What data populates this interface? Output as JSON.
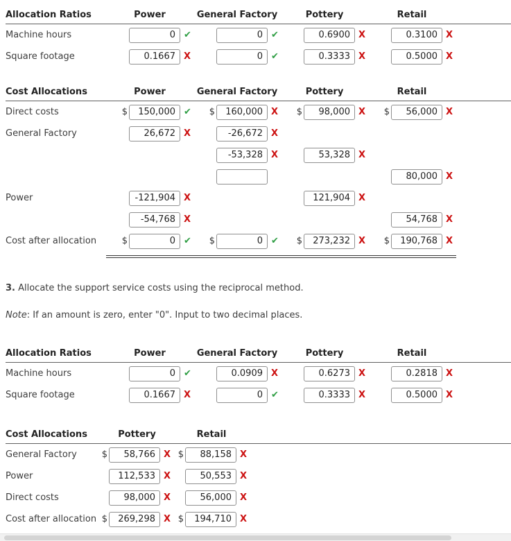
{
  "ratio1": {
    "title": "Allocation Ratios",
    "columns": [
      "Power",
      "General Factory",
      "Pottery",
      "Retail"
    ],
    "rows": [
      {
        "label": "Machine hours",
        "cells": [
          {
            "value": "0",
            "mark": "✔"
          },
          {
            "value": "0",
            "mark": "✔"
          },
          {
            "value": "0.6900",
            "mark": "X"
          },
          {
            "value": "0.3100",
            "mark": "X"
          }
        ]
      },
      {
        "label": "Square footage",
        "cells": [
          {
            "value": "0.1667",
            "mark": "X"
          },
          {
            "value": "0",
            "mark": "✔"
          },
          {
            "value": "0.3333",
            "mark": "X"
          },
          {
            "value": "0.5000",
            "mark": "X"
          }
        ]
      }
    ]
  },
  "cost1": {
    "title": "Cost Allocations",
    "columns": [
      "Power",
      "General Factory",
      "Pottery",
      "Retail"
    ],
    "rows": [
      {
        "label": "Direct costs",
        "cells": [
          {
            "prefix": "$",
            "value": "150,000",
            "mark": "✔"
          },
          {
            "prefix": "$",
            "value": "160,000",
            "mark": "X"
          },
          {
            "prefix": "$",
            "value": "98,000",
            "mark": "X"
          },
          {
            "prefix": "$",
            "value": "56,000",
            "mark": "X"
          }
        ]
      },
      {
        "label": "General Factory",
        "cells": [
          {
            "value": "26,672",
            "mark": "X"
          },
          {
            "value": "-26,672",
            "mark": "X"
          },
          {},
          {}
        ]
      },
      {
        "label": "",
        "cells": [
          {},
          {
            "value": "-53,328",
            "mark": "X"
          },
          {
            "value": "53,328",
            "mark": "X"
          },
          {}
        ]
      },
      {
        "label": "",
        "cells": [
          {},
          {
            "value": "",
            "mark": ""
          },
          {},
          {
            "value": "80,000",
            "mark": "X"
          }
        ]
      },
      {
        "label": "Power",
        "cells": [
          {
            "value": "-121,904",
            "mark": "X"
          },
          {},
          {
            "value": "121,904",
            "mark": "X"
          },
          {}
        ]
      },
      {
        "label": "",
        "cells": [
          {
            "value": "-54,768",
            "mark": "X"
          },
          {},
          {},
          {
            "value": "54,768",
            "mark": "X"
          }
        ]
      },
      {
        "label": "Cost after allocation",
        "cells": [
          {
            "prefix": "$",
            "value": "0",
            "mark": "✔"
          },
          {
            "prefix": "$",
            "value": "0",
            "mark": "✔"
          },
          {
            "prefix": "$",
            "value": "273,232",
            "mark": "X"
          },
          {
            "prefix": "$",
            "value": "190,768",
            "mark": "X"
          }
        ]
      }
    ]
  },
  "section3": {
    "number": "3.",
    "text": " Allocate the support service costs using the reciprocal method.",
    "note_word": "Note",
    "note_text": ": If an amount is zero, enter \"0\". Input to two decimal places."
  },
  "ratio2": {
    "title": "Allocation Ratios",
    "columns": [
      "Power",
      "General Factory",
      "Pottery",
      "Retail"
    ],
    "rows": [
      {
        "label": "Machine hours",
        "cells": [
          {
            "value": "0",
            "mark": "✔"
          },
          {
            "value": "0.0909",
            "mark": "X"
          },
          {
            "value": "0.6273",
            "mark": "X"
          },
          {
            "value": "0.2818",
            "mark": "X"
          }
        ]
      },
      {
        "label": "Square footage",
        "cells": [
          {
            "value": "0.1667",
            "mark": "X"
          },
          {
            "value": "0",
            "mark": "✔"
          },
          {
            "value": "0.3333",
            "mark": "X"
          },
          {
            "value": "0.5000",
            "mark": "X"
          }
        ]
      }
    ]
  },
  "cost2": {
    "title": "Cost Allocations",
    "columns": [
      "Pottery",
      "Retail"
    ],
    "rows": [
      {
        "label": "General Factory",
        "cells": [
          {
            "prefix": "$",
            "value": "58,766",
            "mark": "X"
          },
          {
            "prefix": "$",
            "value": "88,158",
            "mark": "X"
          }
        ]
      },
      {
        "label": "Power",
        "cells": [
          {
            "value": "112,533",
            "mark": "X"
          },
          {
            "value": "50,553",
            "mark": "X"
          }
        ]
      },
      {
        "label": "Direct costs",
        "cells": [
          {
            "value": "98,000",
            "mark": "X"
          },
          {
            "value": "56,000",
            "mark": "X"
          }
        ]
      },
      {
        "label": "Cost after allocation",
        "cells": [
          {
            "prefix": "$",
            "value": "269,298",
            "mark": "X"
          },
          {
            "prefix": "$",
            "value": "194,710",
            "mark": "X"
          }
        ]
      }
    ]
  },
  "colors": {
    "correct": "#2f9e44",
    "incorrect": "#cc1111"
  }
}
